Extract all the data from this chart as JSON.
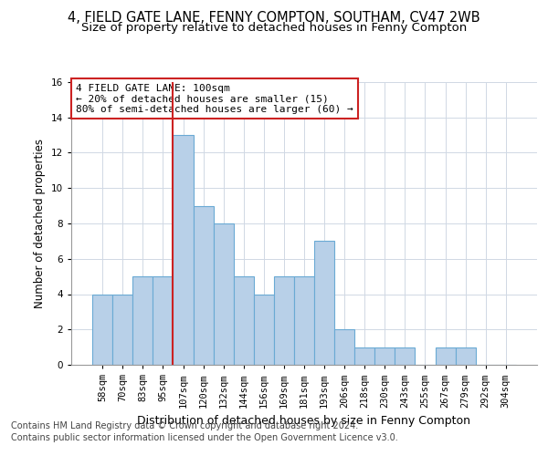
{
  "title1": "4, FIELD GATE LANE, FENNY COMPTON, SOUTHAM, CV47 2WB",
  "title2": "Size of property relative to detached houses in Fenny Compton",
  "xlabel": "Distribution of detached houses by size in Fenny Compton",
  "ylabel": "Number of detached properties",
  "categories": [
    "58sqm",
    "70sqm",
    "83sqm",
    "95sqm",
    "107sqm",
    "120sqm",
    "132sqm",
    "144sqm",
    "156sqm",
    "169sqm",
    "181sqm",
    "193sqm",
    "206sqm",
    "218sqm",
    "230sqm",
    "243sqm",
    "255sqm",
    "267sqm",
    "279sqm",
    "292sqm",
    "304sqm"
  ],
  "values": [
    4,
    4,
    5,
    5,
    13,
    9,
    8,
    5,
    4,
    5,
    5,
    7,
    2,
    1,
    1,
    1,
    0,
    1,
    1,
    0,
    0
  ],
  "bar_color": "#b8d0e8",
  "bar_edge_color": "#6aaad4",
  "vline_x_index": 4,
  "vline_color": "#cc2222",
  "annotation_text": "4 FIELD GATE LANE: 100sqm\n← 20% of detached houses are smaller (15)\n80% of semi-detached houses are larger (60) →",
  "annotation_box_color": "#cc2222",
  "ylim": [
    0,
    16
  ],
  "yticks": [
    0,
    2,
    4,
    6,
    8,
    10,
    12,
    14,
    16
  ],
  "footer1": "Contains HM Land Registry data © Crown copyright and database right 2024.",
  "footer2": "Contains public sector information licensed under the Open Government Licence v3.0.",
  "title1_fontsize": 10.5,
  "title2_fontsize": 9.5,
  "xlabel_fontsize": 9,
  "ylabel_fontsize": 8.5,
  "tick_fontsize": 7.5,
  "annotation_fontsize": 8,
  "footer_fontsize": 7
}
